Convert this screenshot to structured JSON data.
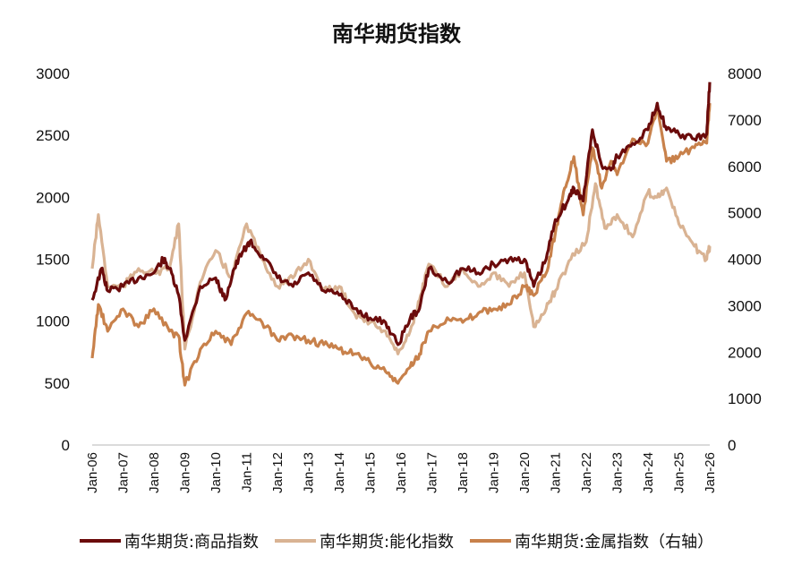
{
  "chart_data": {
    "type": "line",
    "title": "南华期货指数",
    "xlabel": "",
    "ylabel": "",
    "x_ticks": [
      "Jan-06",
      "Jan-07",
      "Jan-08",
      "Jan-09",
      "Jan-10",
      "Jan-11",
      "Jan-12",
      "Jan-13",
      "Jan-14",
      "Jan-15",
      "Jan-16",
      "Jan-17",
      "Jan-18",
      "Jan-19",
      "Jan-20",
      "Jan-21",
      "Jan-22",
      "Jan-23",
      "Jan-24",
      "Jan-25",
      "Jan-26"
    ],
    "xlim": [
      2006,
      2026
    ],
    "ylim_left": [
      0,
      3000
    ],
    "ylim_right": [
      0,
      8000
    ],
    "y_ticks_left": [
      "0",
      "500",
      "1000",
      "1500",
      "2000",
      "2500",
      "3000"
    ],
    "y_ticks_right": [
      "0",
      "1000",
      "2000",
      "3000",
      "4000",
      "5000",
      "6000",
      "7000",
      "8000"
    ],
    "grid": false,
    "legend_position": "bottom",
    "series": [
      {
        "name": "南华期货:商品指数",
        "axis": "left",
        "color": "#6b0b0b",
        "x": [
          2006.0,
          2006.3,
          2006.5,
          2007.0,
          2007.5,
          2008.0,
          2008.3,
          2008.5,
          2008.8,
          2009.0,
          2009.5,
          2010.0,
          2010.3,
          2010.6,
          2010.9,
          2011.1,
          2011.5,
          2012.0,
          2012.5,
          2013.0,
          2013.5,
          2014.0,
          2014.5,
          2015.0,
          2015.5,
          2015.9,
          2016.3,
          2016.6,
          2016.9,
          2017.5,
          2018.0,
          2018.5,
          2019.0,
          2019.5,
          2020.0,
          2020.3,
          2020.7,
          2021.0,
          2021.4,
          2021.6,
          2021.9,
          2022.2,
          2022.5,
          2022.8,
          2023.0,
          2023.5,
          2024.0,
          2024.3,
          2024.6,
          2025.0,
          2025.5,
          2025.9,
          2026.0
        ],
        "y": [
          1170,
          1425,
          1245,
          1280,
          1350,
          1390,
          1500,
          1425,
          1210,
          845,
          1280,
          1350,
          1170,
          1425,
          1570,
          1640,
          1530,
          1350,
          1280,
          1390,
          1245,
          1210,
          1100,
          1025,
          990,
          810,
          1025,
          1100,
          1425,
          1315,
          1425,
          1390,
          1460,
          1500,
          1500,
          1280,
          1500,
          1820,
          1970,
          2075,
          1970,
          2545,
          2255,
          2220,
          2330,
          2435,
          2545,
          2760,
          2545,
          2510,
          2470,
          2510,
          2930
        ]
      },
      {
        "name": "南华期货:能化指数",
        "axis": "left",
        "color": "#d9b393",
        "x": [
          2006.0,
          2006.2,
          2006.5,
          2007.0,
          2007.5,
          2008.0,
          2008.5,
          2008.8,
          2009.0,
          2009.5,
          2010.0,
          2010.5,
          2011.0,
          2011.5,
          2012.0,
          2012.5,
          2013.0,
          2013.5,
          2014.0,
          2014.5,
          2015.0,
          2015.5,
          2015.9,
          2016.3,
          2016.6,
          2016.9,
          2017.5,
          2018.0,
          2018.5,
          2019.0,
          2019.5,
          2020.0,
          2020.3,
          2020.7,
          2021.0,
          2021.5,
          2022.0,
          2022.3,
          2022.6,
          2023.0,
          2023.5,
          2024.0,
          2024.3,
          2024.6,
          2025.0,
          2025.5,
          2025.9,
          2026.0
        ],
        "y": [
          1425,
          1860,
          1280,
          1280,
          1425,
          1390,
          1425,
          1785,
          775,
          1315,
          1570,
          1350,
          1785,
          1500,
          1280,
          1350,
          1500,
          1245,
          1280,
          1060,
          990,
          920,
          735,
          920,
          1170,
          1460,
          1280,
          1425,
          1280,
          1390,
          1280,
          1390,
          955,
          1100,
          1245,
          1500,
          1640,
          2110,
          1750,
          1860,
          1680,
          2040,
          2000,
          2075,
          1785,
          1605,
          1500,
          1605
        ]
      },
      {
        "name": "南华期货:金属指数（右轴）",
        "axis": "right",
        "color": "#c8814b",
        "x": [
          2006.0,
          2006.2,
          2006.5,
          2007.0,
          2007.5,
          2008.0,
          2008.5,
          2008.8,
          2009.0,
          2009.5,
          2010.0,
          2010.5,
          2011.0,
          2011.5,
          2012.0,
          2012.5,
          2013.0,
          2013.5,
          2014.0,
          2014.5,
          2015.0,
          2015.5,
          2015.9,
          2016.3,
          2016.6,
          2016.9,
          2017.5,
          2018.0,
          2018.5,
          2019.0,
          2019.5,
          2020.0,
          2020.3,
          2020.7,
          2021.0,
          2021.3,
          2021.6,
          2021.9,
          2022.2,
          2022.5,
          2022.8,
          2023.0,
          2023.5,
          2024.0,
          2024.3,
          2024.6,
          2025.0,
          2025.5,
          2025.9,
          2026.0
        ],
        "y": [
          1870,
          3025,
          2450,
          2930,
          2545,
          2930,
          2450,
          2350,
          1290,
          2060,
          2450,
          2160,
          2835,
          2640,
          2255,
          2350,
          2255,
          2160,
          2060,
          1965,
          1775,
          1580,
          1330,
          1680,
          1965,
          2450,
          2740,
          2640,
          2835,
          2930,
          3025,
          3410,
          3220,
          3700,
          4570,
          5530,
          6210,
          4955,
          6400,
          5530,
          6110,
          5820,
          6590,
          6500,
          7270,
          6110,
          6210,
          6400,
          6500,
          7360
        ]
      }
    ]
  }
}
